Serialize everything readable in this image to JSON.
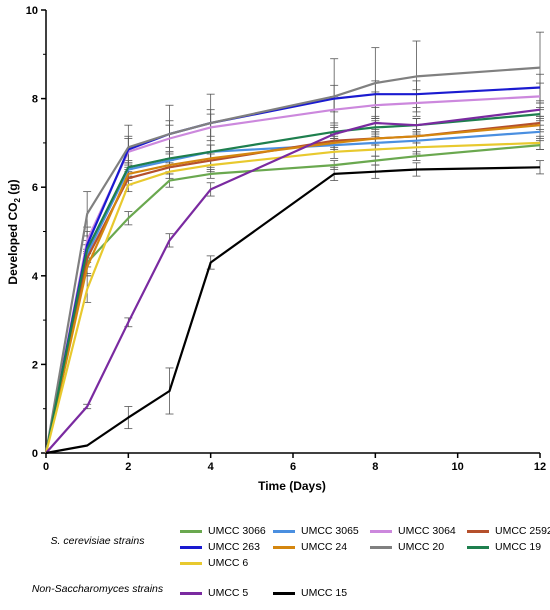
{
  "chart_data": {
    "type": "line",
    "title": "",
    "xlabel": "Time (Days)",
    "ylabel_main": "Developed CO",
    "ylabel_sub": "2",
    "ylabel_unit": " (g)",
    "xlim": [
      0,
      12
    ],
    "ylim": [
      0,
      10
    ],
    "xticks": [
      0,
      2,
      4,
      6,
      8,
      10,
      12
    ],
    "yticks": [
      0,
      2,
      4,
      6,
      8,
      10
    ],
    "grid": false,
    "legend_position": "bottom",
    "x": [
      0,
      1,
      2,
      3,
      4,
      7,
      8,
      9,
      12
    ],
    "groups": [
      {
        "label": "S. cerevisiae strains"
      },
      {
        "label": "Non-Saccharomyces strains"
      }
    ],
    "series": [
      {
        "name": "UMCC 3066",
        "color": "#6aa84f",
        "group": 0,
        "values": [
          0,
          4.3,
          5.3,
          6.15,
          6.3,
          6.5,
          6.6,
          6.7,
          6.95
        ],
        "errors": [
          0,
          0.25,
          0.15,
          0.15,
          0.1,
          0.1,
          0.1,
          0.1,
          0.1
        ]
      },
      {
        "name": "UMCC 3065",
        "color": "#4a8fe0",
        "group": 0,
        "values": [
          0,
          4.5,
          6.4,
          6.6,
          6.8,
          6.95,
          7.0,
          7.05,
          7.25
        ],
        "errors": [
          0,
          0.2,
          0.15,
          0.15,
          0.15,
          0.15,
          0.15,
          0.15,
          0.15
        ]
      },
      {
        "name": "UMCC 3064",
        "color": "#cc88dd",
        "group": 0,
        "values": [
          0,
          4.8,
          6.8,
          7.1,
          7.35,
          7.75,
          7.85,
          7.9,
          8.05
        ],
        "errors": [
          0,
          0.3,
          0.3,
          0.3,
          0.3,
          0.3,
          0.3,
          0.3,
          0.3
        ]
      },
      {
        "name": "UMCC 2592",
        "color": "#b5502c",
        "group": 0,
        "values": [
          0,
          4.4,
          6.2,
          6.45,
          6.6,
          7.05,
          7.1,
          7.15,
          7.45
        ],
        "errors": [
          0,
          0.2,
          0.15,
          0.15,
          0.15,
          0.15,
          0.15,
          0.15,
          0.15
        ]
      },
      {
        "name": "UMCC 263",
        "color": "#1a1ad0",
        "group": 0,
        "values": [
          0,
          4.7,
          6.85,
          7.2,
          7.45,
          8.0,
          8.1,
          8.1,
          8.25
        ],
        "errors": [
          0,
          0.3,
          0.3,
          0.3,
          0.3,
          0.3,
          0.3,
          0.3,
          0.3
        ]
      },
      {
        "name": "UMCC 24",
        "color": "#d4860f",
        "group": 0,
        "values": [
          0,
          4.2,
          6.3,
          6.5,
          6.65,
          7.0,
          7.1,
          7.15,
          7.4
        ],
        "errors": [
          0,
          0.2,
          0.15,
          0.15,
          0.15,
          0.15,
          0.15,
          0.15,
          0.15
        ]
      },
      {
        "name": "UMCC 20",
        "color": "#808080",
        "group": 0,
        "values": [
          0,
          5.4,
          6.9,
          7.2,
          7.45,
          8.05,
          8.35,
          8.5,
          8.7
        ],
        "errors": [
          0,
          0.5,
          0.5,
          0.65,
          0.65,
          0.85,
          0.8,
          0.8,
          0.8
        ]
      },
      {
        "name": "UMCC 19",
        "color": "#1e7f4e",
        "group": 0,
        "values": [
          0,
          4.6,
          6.45,
          6.65,
          6.8,
          7.25,
          7.35,
          7.4,
          7.65
        ],
        "errors": [
          0,
          0.2,
          0.15,
          0.15,
          0.15,
          0.15,
          0.15,
          0.15,
          0.15
        ]
      },
      {
        "name": "UMCC 6",
        "color": "#e8c92e",
        "group": 0,
        "values": [
          0,
          3.7,
          6.05,
          6.35,
          6.5,
          6.8,
          6.85,
          6.9,
          7.0
        ],
        "errors": [
          0,
          0.3,
          0.15,
          0.15,
          0.15,
          0.15,
          0.15,
          0.15,
          0.15
        ]
      },
      {
        "name": "UMCC 5",
        "color": "#7a2aa0",
        "group": 1,
        "values": [
          0,
          1.05,
          2.95,
          4.8,
          5.95,
          7.2,
          7.45,
          7.4,
          7.75
        ],
        "errors": [
          0,
          0.05,
          0.1,
          0.15,
          0.15,
          0.15,
          0.15,
          0.15,
          0.15
        ]
      },
      {
        "name": "UMCC 15",
        "color": "#000000",
        "group": 1,
        "values": [
          0,
          0.17,
          0.8,
          1.4,
          4.3,
          6.3,
          6.35,
          6.4,
          6.45
        ],
        "errors": [
          0,
          0,
          0.25,
          0.52,
          0.15,
          0.15,
          0.15,
          0.15,
          0.15
        ]
      }
    ]
  }
}
